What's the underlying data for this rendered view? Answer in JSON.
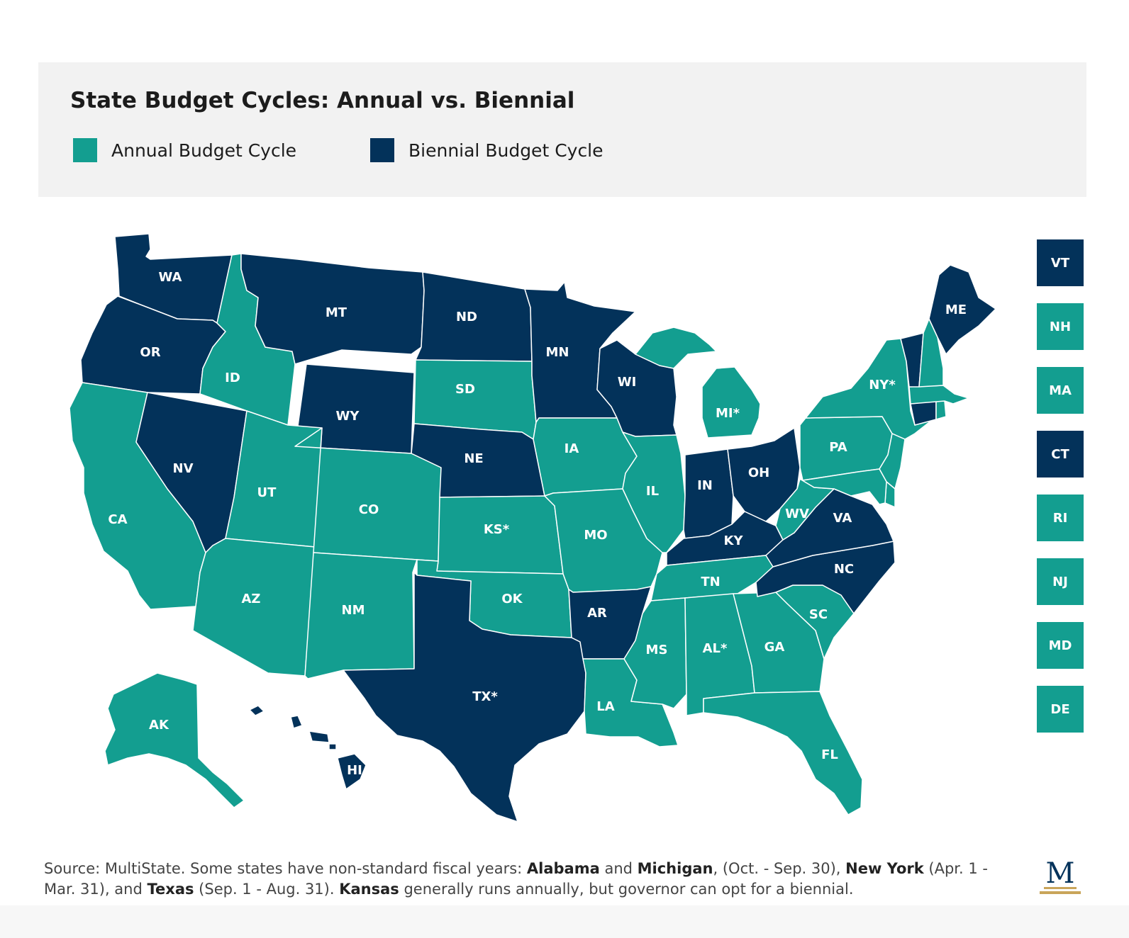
{
  "title": "State Budget Cycles: Annual vs. Biennial",
  "legend": {
    "annual_label": "Annual Budget Cycle",
    "biennial_label": "Biennial Budget Cycle"
  },
  "colors": {
    "annual": "#139e90",
    "biennial": "#03325a"
  },
  "states": {
    "WA": {
      "label": "WA",
      "cycle": "biennial"
    },
    "OR": {
      "label": "OR",
      "cycle": "biennial"
    },
    "CA": {
      "label": "CA",
      "cycle": "annual"
    },
    "NV": {
      "label": "NV",
      "cycle": "biennial"
    },
    "ID": {
      "label": "ID",
      "cycle": "annual"
    },
    "MT": {
      "label": "MT",
      "cycle": "biennial"
    },
    "WY": {
      "label": "WY",
      "cycle": "biennial"
    },
    "UT": {
      "label": "UT",
      "cycle": "annual"
    },
    "AZ": {
      "label": "AZ",
      "cycle": "annual"
    },
    "CO": {
      "label": "CO",
      "cycle": "annual"
    },
    "NM": {
      "label": "NM",
      "cycle": "annual"
    },
    "ND": {
      "label": "ND",
      "cycle": "biennial"
    },
    "SD": {
      "label": "SD",
      "cycle": "annual"
    },
    "NE": {
      "label": "NE",
      "cycle": "biennial"
    },
    "KS": {
      "label": "KS*",
      "cycle": "annual"
    },
    "OK": {
      "label": "OK",
      "cycle": "annual"
    },
    "TX": {
      "label": "TX*",
      "cycle": "biennial"
    },
    "MN": {
      "label": "MN",
      "cycle": "biennial"
    },
    "IA": {
      "label": "IA",
      "cycle": "annual"
    },
    "MO": {
      "label": "MO",
      "cycle": "annual"
    },
    "AR": {
      "label": "AR",
      "cycle": "biennial"
    },
    "LA": {
      "label": "LA",
      "cycle": "annual"
    },
    "WI": {
      "label": "WI",
      "cycle": "biennial"
    },
    "IL": {
      "label": "IL",
      "cycle": "annual"
    },
    "MI": {
      "label": "MI*",
      "cycle": "annual"
    },
    "IN": {
      "label": "IN",
      "cycle": "biennial"
    },
    "OH": {
      "label": "OH",
      "cycle": "biennial"
    },
    "KY": {
      "label": "KY",
      "cycle": "biennial"
    },
    "TN": {
      "label": "TN",
      "cycle": "annual"
    },
    "MS": {
      "label": "MS",
      "cycle": "annual"
    },
    "AL": {
      "label": "AL*",
      "cycle": "annual"
    },
    "GA": {
      "label": "GA",
      "cycle": "annual"
    },
    "FL": {
      "label": "FL",
      "cycle": "annual"
    },
    "SC": {
      "label": "SC",
      "cycle": "annual"
    },
    "NC": {
      "label": "NC",
      "cycle": "biennial"
    },
    "VA": {
      "label": "VA",
      "cycle": "biennial"
    },
    "WV": {
      "label": "WV",
      "cycle": "annual"
    },
    "PA": {
      "label": "PA",
      "cycle": "annual"
    },
    "NY": {
      "label": "NY*",
      "cycle": "annual"
    },
    "ME": {
      "label": "ME",
      "cycle": "biennial"
    },
    "AK": {
      "label": "AK",
      "cycle": "annual"
    },
    "HI": {
      "label": "HI",
      "cycle": "biennial"
    },
    "VT": {
      "label": "VT",
      "cycle": "biennial"
    },
    "NH": {
      "label": "NH",
      "cycle": "annual"
    },
    "MA": {
      "label": "MA",
      "cycle": "annual"
    },
    "CT": {
      "label": "CT",
      "cycle": "biennial"
    },
    "RI": {
      "label": "RI",
      "cycle": "annual"
    },
    "NJ": {
      "label": "NJ",
      "cycle": "annual"
    },
    "MD": {
      "label": "MD",
      "cycle": "annual"
    },
    "DE": {
      "label": "DE",
      "cycle": "annual"
    }
  },
  "footer": {
    "p1": "Source: MultiState. Some states have non-standard fiscal years: ",
    "alabama": "Alabama",
    "and1": " and ",
    "michigan": "Michigan",
    "p2": ", (Oct. - Sep. 30),  ",
    "new_york": "New York",
    "p3": " (Apr. 1 - Mar. 31), and ",
    "texas": "Texas",
    "p4": " (Sep. 1 - Aug. 31). ",
    "kansas": "Kansas",
    "p5": " generally runs annually, but governor can opt for a biennial."
  },
  "logo_letter": "M"
}
